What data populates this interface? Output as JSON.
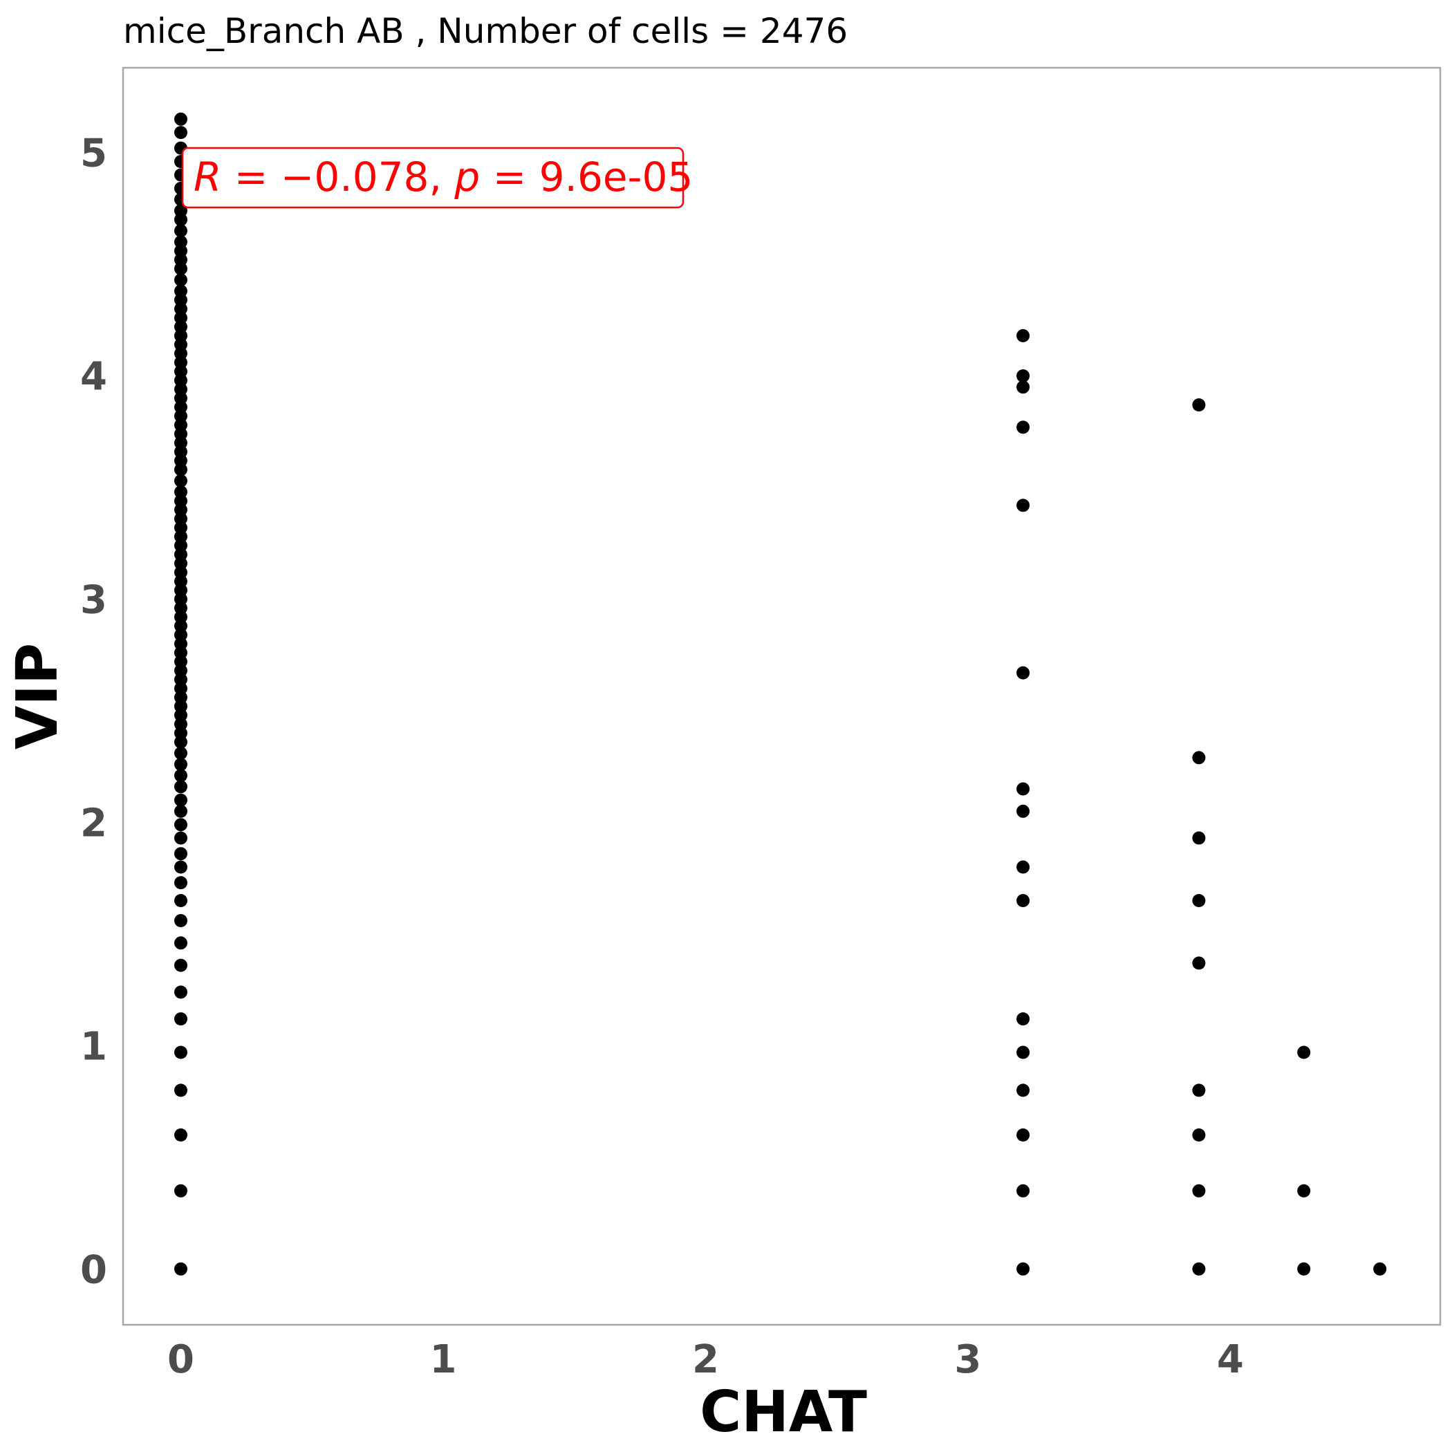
{
  "chart_data": {
    "type": "scatter",
    "title": "mice_Branch AB , Number of cells =  2476",
    "xlabel": "CHAT",
    "ylabel": "VIP",
    "xlim": [
      -0.22,
      4.8
    ],
    "ylim": [
      -0.25,
      5.38
    ],
    "xticks": [
      "0",
      "1",
      "2",
      "3",
      "4"
    ],
    "yticks": [
      "0",
      "1",
      "2",
      "3",
      "4",
      "5"
    ],
    "grid": false,
    "point_color": "#000000",
    "annotation": {
      "r_label": "R",
      "eq1": " = ",
      "r_value": "−0.078",
      "sep": ", ",
      "p_label": "p",
      "eq2": " = ",
      "p_value": "9.6e-05",
      "color": "#ff0000"
    },
    "columns": [
      {
        "x": 0,
        "y": [
          0,
          0.35,
          0.6,
          0.8,
          0.97,
          1.12,
          1.24,
          1.36,
          1.46,
          1.56,
          1.65,
          1.73,
          1.8,
          1.86,
          1.93,
          1.99,
          2.05,
          2.1,
          2.16,
          2.21,
          2.26,
          2.31,
          2.36,
          2.4,
          2.44,
          2.48,
          2.52,
          2.56,
          2.6,
          2.64,
          2.68,
          2.72,
          2.76,
          2.8,
          2.84,
          2.88,
          2.92,
          2.96,
          3.0,
          3.04,
          3.08,
          3.12,
          3.16,
          3.2,
          3.24,
          3.28,
          3.32,
          3.36,
          3.4,
          3.44,
          3.48,
          3.53,
          3.58,
          3.62,
          3.66,
          3.7,
          3.74,
          3.78,
          3.82,
          3.86,
          3.9,
          3.94,
          3.98,
          4.02,
          4.06,
          4.1,
          4.14,
          4.18,
          4.22,
          4.26,
          4.3,
          4.34,
          4.38,
          4.43,
          4.48,
          4.52,
          4.56,
          4.6,
          4.65,
          4.7,
          4.74,
          4.79,
          4.84,
          4.9,
          4.96,
          5.02,
          5.09,
          5.15
        ]
      },
      {
        "x": 3.21,
        "y": [
          0,
          0.35,
          0.6,
          0.8,
          0.97,
          1.12,
          1.65,
          1.8,
          2.05,
          2.15,
          2.67,
          3.42,
          3.77,
          3.95,
          4.0,
          4.18
        ]
      },
      {
        "x": 3.88,
        "y": [
          0,
          0.35,
          0.6,
          0.8,
          1.37,
          1.65,
          1.93,
          2.29,
          3.87
        ]
      },
      {
        "x": 4.28,
        "y": [
          0,
          0.35,
          0.97
        ]
      },
      {
        "x": 4.57,
        "y": [
          0
        ]
      }
    ]
  }
}
